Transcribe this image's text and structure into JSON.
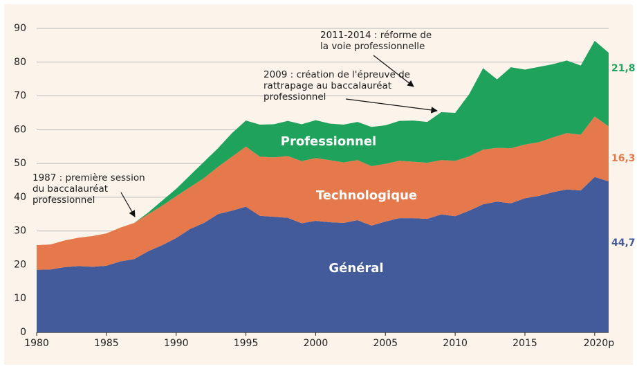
{
  "chart_data": {
    "type": "stacked_area",
    "x": [
      1980,
      1981,
      1982,
      1983,
      1984,
      1985,
      1986,
      1987,
      1988,
      1989,
      1990,
      1991,
      1992,
      1993,
      1994,
      1995,
      1996,
      1997,
      1998,
      1999,
      2000,
      2001,
      2002,
      2003,
      2004,
      2005,
      2006,
      2007,
      2008,
      2009,
      2010,
      2011,
      2012,
      2013,
      2014,
      2015,
      2016,
      2017,
      2018,
      2019,
      2020,
      2021
    ],
    "series": [
      {
        "name": "Général",
        "color": "#445b9b",
        "values": [
          18.5,
          18.6,
          19.3,
          19.6,
          19.4,
          19.7,
          21,
          21.7,
          24,
          25.8,
          27.9,
          30.6,
          32.4,
          35,
          36,
          37.2,
          34.5,
          34.2,
          33.9,
          32.3,
          33,
          32.6,
          32.4,
          33.2,
          31.6,
          32.8,
          33.8,
          33.8,
          33.6,
          34.9,
          34.4,
          36,
          37.9,
          38.7,
          38.2,
          39.7,
          40.4,
          41.5,
          42.3,
          42,
          46,
          44.7
        ],
        "value_labels": [
          null,
          null,
          null,
          null,
          null,
          null,
          null,
          null,
          null,
          null,
          null,
          null,
          null,
          null,
          null,
          null,
          null,
          null,
          null,
          null,
          null,
          null,
          null,
          null,
          null,
          null,
          null,
          null,
          null,
          null,
          null,
          null,
          null,
          null,
          null,
          null,
          null,
          null,
          null,
          null,
          null,
          "44,7"
        ]
      },
      {
        "name": "Technologique",
        "color": "#e5794b",
        "values": [
          7.3,
          7.4,
          7.9,
          8.4,
          9.1,
          9.6,
          10,
          10.7,
          11,
          11.7,
          12.4,
          12.4,
          13.3,
          14,
          16,
          17.8,
          17.5,
          17.6,
          18.3,
          18.4,
          18.6,
          18.4,
          17.9,
          17.8,
          17.6,
          17.1,
          17,
          16.7,
          16.6,
          16.1,
          16.4,
          16.1,
          16.2,
          15.9,
          16.3,
          15.9,
          15.9,
          16.2,
          16.7,
          16.5,
          17.9,
          16.3
        ],
        "value_labels": [
          null,
          null,
          null,
          null,
          null,
          null,
          null,
          null,
          null,
          null,
          null,
          null,
          null,
          null,
          null,
          null,
          null,
          null,
          null,
          null,
          null,
          null,
          null,
          null,
          null,
          null,
          null,
          null,
          null,
          null,
          null,
          null,
          null,
          null,
          null,
          null,
          null,
          null,
          null,
          null,
          null,
          "16,3"
        ]
      },
      {
        "name": "Professionnel",
        "color": "#1fa35c",
        "values": [
          null,
          null,
          null,
          null,
          null,
          null,
          null,
          0,
          0.5,
          1.5,
          2.2,
          3.5,
          4.8,
          5.5,
          7,
          7.7,
          9.5,
          9.8,
          10.4,
          10.9,
          11.2,
          10.8,
          11.2,
          11.3,
          11.6,
          11.4,
          11.8,
          12.2,
          12.1,
          14.2,
          14.2,
          18.4,
          24.1,
          20.3,
          24,
          22.2,
          22.3,
          21.7,
          21.5,
          20.5,
          22.4,
          21.8
        ],
        "value_labels": [
          null,
          null,
          null,
          null,
          null,
          null,
          null,
          null,
          null,
          null,
          null,
          null,
          null,
          null,
          null,
          null,
          null,
          null,
          null,
          null,
          null,
          null,
          null,
          null,
          null,
          null,
          null,
          null,
          null,
          null,
          null,
          null,
          null,
          null,
          null,
          null,
          null,
          null,
          null,
          null,
          null,
          "21,8"
        ]
      }
    ],
    "xlim": [
      1980,
      2021
    ],
    "xticks": [
      1980,
      1985,
      1990,
      1995,
      2000,
      2005,
      2010,
      2015,
      {
        "value": 2020,
        "label": "2020p"
      }
    ],
    "ylim": [
      0,
      90
    ],
    "yticks": [
      0,
      10,
      20,
      30,
      40,
      50,
      60,
      70,
      80,
      90
    ],
    "grid": true,
    "annotations": [
      {
        "lines": [
          "1987 : première session",
          "du baccalauréat",
          "professionnel"
        ]
      },
      {
        "lines": [
          "2009 : création de l'épreuve de",
          "rattrapage au baccalauréat",
          "professionnel"
        ]
      },
      {
        "lines": [
          "2011-2014 : réforme de",
          "la voie professionnelle"
        ]
      }
    ]
  }
}
